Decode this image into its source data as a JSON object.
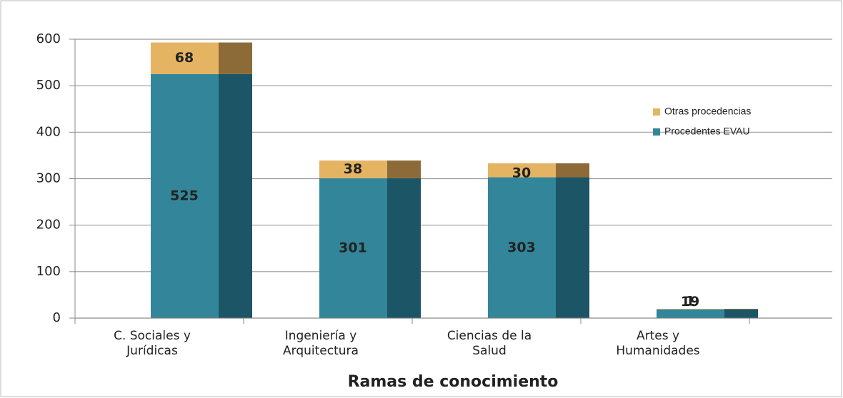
{
  "chart_data": {
    "type": "bar",
    "stacked": true,
    "x_label": "Ramas de conocimiento",
    "categories": [
      [
        "C. Sociales y",
        "Jurídicas"
      ],
      [
        "Ingeniería y",
        "Arquitectura"
      ],
      [
        "Ciencias de la",
        "Salud"
      ],
      [
        "Artes y",
        "Humanidades"
      ]
    ],
    "series": [
      {
        "name": "Procedentes EVAU",
        "color": "#338699",
        "side_color": "#1c5566",
        "values": [
          525,
          301,
          303,
          19
        ]
      },
      {
        "name": "Otras procedencias",
        "color": "#e5b463",
        "side_color": "#8c6b38",
        "values": [
          68,
          38,
          30,
          1
        ]
      }
    ],
    "ylim": [
      0,
      600
    ],
    "yticks": [
      0,
      100,
      200,
      300,
      400,
      500,
      600
    ],
    "grid": true,
    "legend": "right"
  }
}
